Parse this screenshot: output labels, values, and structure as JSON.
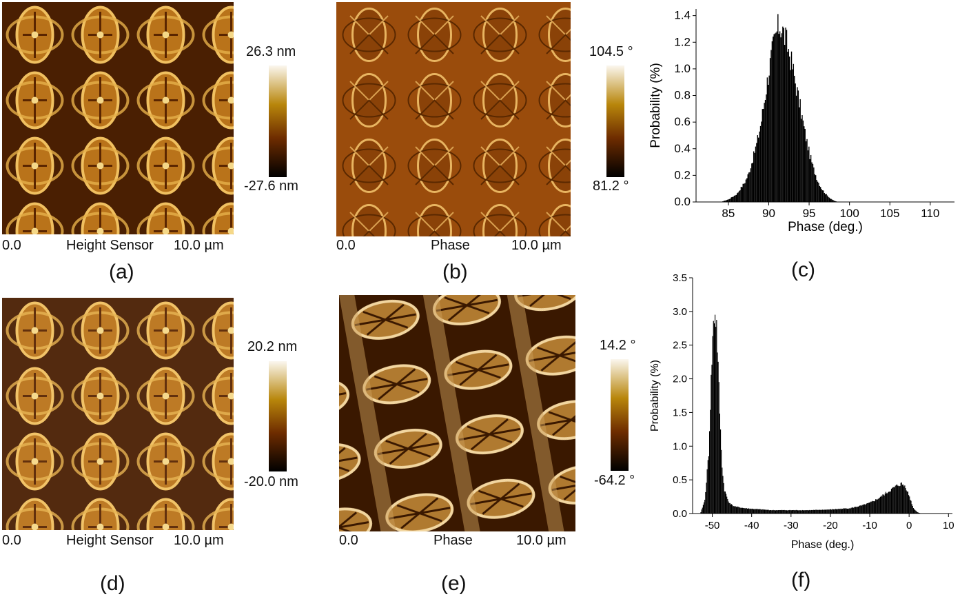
{
  "colors": {
    "afm_low": "#000000",
    "afm_mid": "#7a3f00",
    "afm_mid2": "#b8860b",
    "afm_high": "#fbf7ef",
    "bar_fill": "#000000"
  },
  "panels": {
    "a": {
      "scale_max": "26.3 nm",
      "scale_min": "-27.6 nm",
      "left_label": "0.0",
      "channel": "Height Sensor",
      "right_label": "10.0 µm",
      "caption": "(a)"
    },
    "b": {
      "scale_max": "104.5 °",
      "scale_min": "81.2 °",
      "left_label": "0.0",
      "channel": "Phase",
      "right_label": "10.0 µm",
      "caption": "(b)"
    },
    "c": {
      "caption": "(c)"
    },
    "d": {
      "scale_max": "20.2 nm",
      "scale_min": "-20.0 nm",
      "left_label": "0.0",
      "channel": "Height Sensor",
      "right_label": "10.0 µm",
      "caption": "(d)"
    },
    "e": {
      "scale_max": "14.2 °",
      "scale_min": "-64.2 °",
      "left_label": "0.0",
      "channel": "Phase",
      "right_label": "10.0 µm",
      "caption": "(e)"
    },
    "f": {
      "caption": "(f)"
    }
  },
  "chart_data": [
    {
      "id": "c",
      "type": "bar",
      "xlabel": "Phase  (deg.)",
      "ylabel": "Probability (%)",
      "xlim": [
        81,
        113
      ],
      "ylim": [
        0,
        1.45
      ],
      "xticks": [
        85,
        90,
        95,
        100,
        105,
        110
      ],
      "yticks": [
        0.0,
        0.2,
        0.4,
        0.6,
        0.8,
        1.0,
        1.2,
        1.4
      ],
      "x": [
        84.0,
        85.0,
        86.0,
        87.0,
        87.5,
        88.0,
        88.5,
        89.0,
        89.5,
        90.0,
        90.5,
        91.0,
        91.3,
        91.6,
        92.0,
        92.5,
        93.0,
        93.5,
        94.0,
        94.5,
        95.0,
        95.5,
        96.0,
        96.5,
        97.0,
        97.5,
        98.0,
        98.5
      ],
      "values": [
        0.0,
        0.02,
        0.06,
        0.15,
        0.22,
        0.33,
        0.45,
        0.6,
        0.8,
        1.0,
        1.17,
        1.29,
        1.33,
        1.3,
        1.23,
        1.12,
        0.98,
        0.82,
        0.66,
        0.5,
        0.36,
        0.25,
        0.16,
        0.1,
        0.06,
        0.03,
        0.01,
        0.0
      ]
    },
    {
      "id": "f",
      "type": "bar",
      "xlabel": "Phase (deg.)",
      "ylabel": "Probability (%)",
      "xlim": [
        -55,
        11
      ],
      "ylim": [
        0,
        3.5
      ],
      "xticks": [
        -50,
        -40,
        -30,
        -20,
        -10,
        0,
        10
      ],
      "yticks": [
        0.0,
        0.5,
        1.0,
        1.5,
        2.0,
        2.5,
        3.0,
        3.5
      ],
      "x": [
        -53.0,
        -52.0,
        -51.0,
        -50.5,
        -50.0,
        -49.5,
        -49.0,
        -48.5,
        -48.0,
        -47.5,
        -47.0,
        -46.0,
        -45.0,
        -44.0,
        -42.0,
        -40.0,
        -35.0,
        -30.0,
        -25.0,
        -20.0,
        -15.0,
        -12.0,
        -10.0,
        -8.0,
        -6.0,
        -4.0,
        -3.0,
        -2.0,
        -1.0,
        0.0,
        1.0,
        2.0,
        3.0
      ],
      "values": [
        0.02,
        0.2,
        0.9,
        1.8,
        2.6,
        3.0,
        2.8,
        2.0,
        1.2,
        0.6,
        0.35,
        0.18,
        0.12,
        0.1,
        0.08,
        0.07,
        0.05,
        0.05,
        0.05,
        0.06,
        0.08,
        0.12,
        0.16,
        0.22,
        0.3,
        0.38,
        0.42,
        0.44,
        0.4,
        0.25,
        0.08,
        0.02,
        0.0
      ]
    }
  ]
}
